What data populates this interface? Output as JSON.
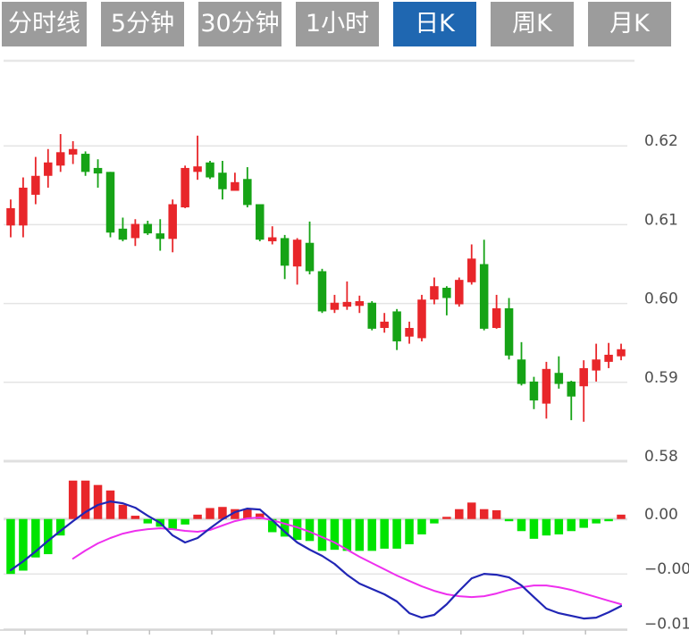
{
  "tabs": {
    "items": [
      {
        "label": "分时线",
        "active": false
      },
      {
        "label": "5分钟",
        "active": false
      },
      {
        "label": "30分钟",
        "active": false
      },
      {
        "label": "1小时",
        "active": false
      },
      {
        "label": "日K",
        "active": true
      },
      {
        "label": "周K",
        "active": false
      },
      {
        "label": "月K",
        "active": false
      }
    ],
    "active_bg": "#1f67b1",
    "inactive_bg": "#9c9c9c"
  },
  "colors": {
    "up": "#e8262a",
    "down": "#16a316",
    "hist_up": "#e8262a",
    "hist_down": "#00e400",
    "dif_line": "#2126b5",
    "dea_line": "#ee2fee",
    "grid": "#e4e4e4",
    "grid_strong": "#e0e0e0",
    "axis_line": "#d0d0d0",
    "tick": "#c0c0c0",
    "axis_text": "#4f4f4f"
  },
  "chart_data": {
    "type": "candlestick+macd",
    "legend_position": "none",
    "grid": true,
    "main": {
      "ylabels": [
        "0.62",
        "0.61",
        "0.60",
        "0.59",
        "0.58"
      ],
      "yvalues": [
        0.62,
        0.61,
        0.6,
        0.59,
        0.58
      ],
      "ymin": 0.58,
      "ymax": 0.6308,
      "candles_ohlc": [
        [
          0.6099,
          0.6132,
          0.6084,
          0.6121
        ],
        [
          0.6099,
          0.616,
          0.6084,
          0.6147
        ],
        [
          0.6138,
          0.6186,
          0.6126,
          0.6162
        ],
        [
          0.6162,
          0.6196,
          0.6147,
          0.6179
        ],
        [
          0.6175,
          0.6215,
          0.6167,
          0.6192
        ],
        [
          0.6189,
          0.6206,
          0.6177,
          0.6196
        ],
        [
          0.619,
          0.6193,
          0.6162,
          0.6167
        ],
        [
          0.6172,
          0.6183,
          0.6147,
          0.6165
        ],
        [
          0.6167,
          0.6167,
          0.6084,
          0.609
        ],
        [
          0.6095,
          0.6109,
          0.6079,
          0.6081
        ],
        [
          0.6083,
          0.6107,
          0.6073,
          0.6101
        ],
        [
          0.6101,
          0.6105,
          0.6087,
          0.6089
        ],
        [
          0.6089,
          0.6107,
          0.6067,
          0.6082
        ],
        [
          0.6082,
          0.6132,
          0.6065,
          0.6126
        ],
        [
          0.6122,
          0.6175,
          0.6121,
          0.6172
        ],
        [
          0.6167,
          0.6213,
          0.6157,
          0.6174
        ],
        [
          0.6179,
          0.6181,
          0.6158,
          0.616
        ],
        [
          0.6166,
          0.6181,
          0.6132,
          0.6145
        ],
        [
          0.6143,
          0.6166,
          0.6143,
          0.6154
        ],
        [
          0.6158,
          0.6173,
          0.6122,
          0.6125
        ],
        [
          0.6126,
          0.6126,
          0.6079,
          0.6081
        ],
        [
          0.6079,
          0.6098,
          0.6075,
          0.6084
        ],
        [
          0.6083,
          0.6087,
          0.6031,
          0.6048
        ],
        [
          0.6047,
          0.6083,
          0.6024,
          0.6081
        ],
        [
          0.6077,
          0.6104,
          0.6037,
          0.6041
        ],
        [
          0.6041,
          0.6044,
          0.5988,
          0.599
        ],
        [
          0.5992,
          0.6011,
          0.5988,
          0.6001
        ],
        [
          0.5996,
          0.6028,
          0.5992,
          0.6002
        ],
        [
          0.5997,
          0.601,
          0.5988,
          0.6003
        ],
        [
          0.6001,
          0.6003,
          0.5966,
          0.5968
        ],
        [
          0.5969,
          0.5988,
          0.5963,
          0.5977
        ],
        [
          0.599,
          0.5993,
          0.5941,
          0.5952
        ],
        [
          0.5958,
          0.5977,
          0.5949,
          0.5969
        ],
        [
          0.5956,
          0.6011,
          0.5952,
          0.6005
        ],
        [
          0.6005,
          0.6033,
          0.5999,
          0.6022
        ],
        [
          0.602,
          0.6022,
          0.5985,
          0.6007
        ],
        [
          0.5999,
          0.6033,
          0.5996,
          0.603
        ],
        [
          0.6027,
          0.6075,
          0.6024,
          0.6057
        ],
        [
          0.605,
          0.6081,
          0.5966,
          0.5968
        ],
        [
          0.5969,
          0.6011,
          0.5968,
          0.5994
        ],
        [
          0.5994,
          0.6007,
          0.5929,
          0.5934
        ],
        [
          0.5929,
          0.5951,
          0.5896,
          0.5898
        ],
        [
          0.5901,
          0.5907,
          0.5866,
          0.5877
        ],
        [
          0.5873,
          0.5926,
          0.5854,
          0.5917
        ],
        [
          0.5912,
          0.5933,
          0.5892,
          0.5898
        ],
        [
          0.5901,
          0.5902,
          0.5852,
          0.5882
        ],
        [
          0.5895,
          0.5928,
          0.585,
          0.5918
        ],
        [
          0.5915,
          0.5949,
          0.5901,
          0.5929
        ],
        [
          0.5926,
          0.595,
          0.5918,
          0.5935
        ],
        [
          0.5933,
          0.5949,
          0.5928,
          0.5942
        ]
      ]
    },
    "macd": {
      "ylabels": [
        {
          "text": "0.00",
          "value": 0
        },
        {
          "text": "−0.00",
          "value": -0.005
        },
        {
          "text": "−0.01",
          "value": -0.01
        }
      ],
      "ymin": -0.0106,
      "ymax": 0.00527,
      "histogram": [
        -0.005,
        -0.0047,
        -0.0035,
        -0.0032,
        -0.0015,
        0.0035,
        0.0035,
        0.0031,
        0.0026,
        0.0013,
        0.0003,
        -0.0004,
        -0.0007,
        -0.001,
        -0.0005,
        0.0004,
        0.001,
        0.0011,
        0.0009,
        0.0009,
        0.0005,
        -0.0012,
        -0.0016,
        -0.0019,
        -0.002,
        -0.0029,
        -0.0028,
        -0.0029,
        -0.0029,
        -0.0029,
        -0.0027,
        -0.0027,
        -0.0023,
        -0.0014,
        -0.0004,
        0.0002,
        0.0009,
        0.0015,
        0.0009,
        0.0008,
        -0.0002,
        -0.0011,
        -0.0018,
        -0.0015,
        -0.0014,
        -0.0011,
        -0.0008,
        -0.0004,
        -0.0002,
        0.0004
      ],
      "dif": [
        -0.00466,
        -0.00385,
        -0.00295,
        -0.00198,
        -0.00108,
        -0.00019,
        0.00063,
        0.00128,
        0.0016,
        0.00144,
        0.00103,
        0.0003,
        -0.00035,
        -0.00149,
        -0.00214,
        -0.00173,
        -0.00084,
        -2e-05,
        0.00063,
        0.00095,
        0.00087,
        -0.00011,
        -0.00116,
        -0.00214,
        -0.00279,
        -0.00336,
        -0.00409,
        -0.00507,
        -0.00588,
        -0.00637,
        -0.00686,
        -0.00751,
        -0.00857,
        -0.00898,
        -0.00873,
        -0.00776,
        -0.00654,
        -0.0054,
        -0.00499,
        -0.00507,
        -0.00532,
        -0.00605,
        -0.00711,
        -0.00816,
        -0.00857,
        -0.00882,
        -0.00906,
        -0.00898,
        -0.00849,
        -0.00792
      ],
      "dea": [
        null,
        null,
        null,
        null,
        null,
        -0.00361,
        -0.00287,
        -0.00222,
        -0.00173,
        -0.00133,
        -0.00108,
        -0.00092,
        -0.00084,
        -0.00092,
        -0.00108,
        -0.00116,
        -0.001,
        -0.00059,
        -0.00019,
        6e-05,
        0.00014,
        -0.00011,
        -0.00043,
        -0.00076,
        -0.00116,
        -0.00165,
        -0.00214,
        -0.00279,
        -0.00344,
        -0.00401,
        -0.00458,
        -0.00515,
        -0.00564,
        -0.00613,
        -0.00654,
        -0.00686,
        -0.00703,
        -0.00711,
        -0.00703,
        -0.00678,
        -0.00646,
        -0.00621,
        -0.00605,
        -0.00605,
        -0.00621,
        -0.00646,
        -0.00678,
        -0.00711,
        -0.00744,
        -0.00776
      ],
      "x_tick_indices": [
        1,
        6,
        11,
        16,
        21,
        26,
        31,
        36,
        41,
        46
      ]
    }
  }
}
